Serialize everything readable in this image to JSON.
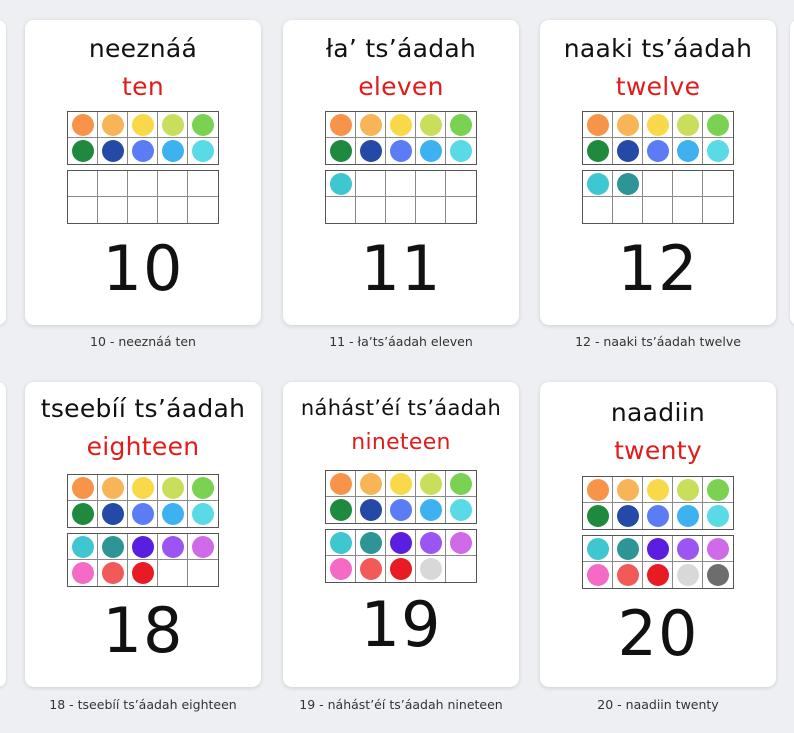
{
  "colors": {
    "row1": [
      "#f7944a",
      "#f8b558",
      "#f9d94a",
      "#c9de5a",
      "#7bd152"
    ],
    "row2": [
      "#1f8a3e",
      "#2449a6",
      "#5b7cf4",
      "#3eb2f0",
      "#5ad9e6"
    ],
    "teens": [
      "#3ec7d0",
      "#2d9596",
      "#5a1ee0",
      "#9b55f3",
      "#cf6be8"
    ],
    "late": [
      "#f46ac4",
      "#f25a5a",
      "#e81b24",
      "#d8d8d8",
      "#6d6d6d"
    ]
  },
  "cards": [
    {
      "title": "neeznáá",
      "word": "ten",
      "number": "10",
      "caption": "10 - neeznáá ten",
      "count": 10
    },
    {
      "title": "ła’ ts’áadah",
      "word": "eleven",
      "number": "11",
      "caption": "11 - ła’ts’áadah eleven",
      "count": 11
    },
    {
      "title": "naaki ts’áadah",
      "word": "twelve",
      "number": "12",
      "caption": "12 - naaki ts’áadah twelve",
      "count": 12
    },
    {
      "title": "tseebíí ts’áadah",
      "word": "eighteen",
      "number": "18",
      "caption": "18 - tseebíí ts’áadah eighteen",
      "count": 18
    },
    {
      "title": "náhást’éí ts’áadah",
      "word": "nineteen",
      "number": "19",
      "caption": "19 - náhást’éí ts’áadah nineteen",
      "count": 19
    },
    {
      "title": "naadiin",
      "word": "twenty",
      "number": "20",
      "caption": "20 - naadiin twenty",
      "count": 20
    }
  ]
}
